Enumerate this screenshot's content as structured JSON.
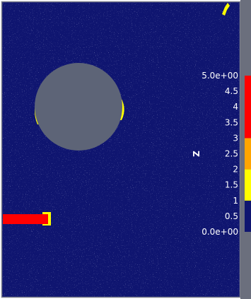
{
  "colors": {
    "background": "#0f1570",
    "speckle": "#8a8fb8",
    "obstacle": "#5d6477",
    "frame": "#7c7f8c",
    "right_strip": "#6b6f7d",
    "level_low": "#0f1570",
    "level_mid": "#ffff00",
    "level_high": "#ffa500",
    "level_top": "#ff0000",
    "label_text": "#ffffff"
  },
  "colorbar": {
    "title": "Z",
    "min": 0,
    "max": 5,
    "tick_labels": [
      "5.0e+00",
      "4.5",
      "4",
      "3.5",
      "3",
      "2.5",
      "2",
      "1.5",
      "1",
      "0.5",
      "0.0e+00"
    ],
    "tick_values": [
      5,
      4.5,
      4,
      3.5,
      3,
      2.5,
      2,
      1.5,
      1,
      0.5,
      0
    ],
    "bands": [
      {
        "from": 0,
        "to": 1,
        "color": "#0f1570"
      },
      {
        "from": 1,
        "to": 2,
        "color": "#ffff00"
      },
      {
        "from": 2,
        "to": 3,
        "color": "#ffa500"
      },
      {
        "from": 3,
        "to": 5,
        "color": "#ff0000"
      }
    ]
  },
  "scene": {
    "obstacle_shape": "circle",
    "features": [
      {
        "name": "circle-left-edge-deposit",
        "level": "1-2"
      },
      {
        "name": "circle-right-edge-deposit",
        "level": "1-2"
      },
      {
        "name": "left-edge-stream",
        "level": "3-5"
      },
      {
        "name": "top-right-corner-deposit",
        "level": "1-2"
      }
    ]
  }
}
